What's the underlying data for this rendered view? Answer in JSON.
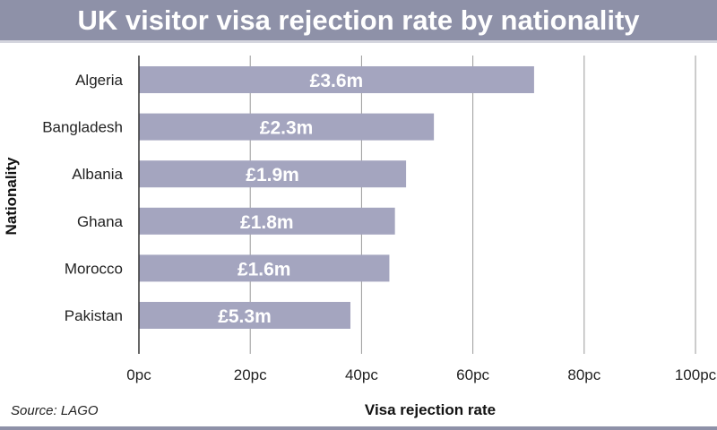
{
  "title": "UK visitor visa rejection rate by nationality",
  "source": "Source: LAGO",
  "colors": {
    "bar": "#a4a5bf",
    "header": "#8e91a8",
    "grid": "#9a9a9a"
  },
  "chart_data": {
    "type": "bar",
    "orientation": "horizontal",
    "title": "UK visitor visa rejection rate by nationality",
    "xlabel": "Visa rejection rate",
    "ylabel": "Nationality",
    "xlim": [
      0,
      100
    ],
    "xticks": [
      0,
      20,
      40,
      60,
      80,
      100
    ],
    "xtick_labels": [
      "0pc",
      "20pc",
      "40pc",
      "60pc",
      "80pc",
      "100pc"
    ],
    "grid": true,
    "categories": [
      "Algeria",
      "Bangladesh",
      "Albania",
      "Ghana",
      "Morocco",
      "Pakistan"
    ],
    "values": [
      71,
      53,
      48,
      46,
      45,
      38
    ],
    "bar_labels": [
      "£3.6m",
      "£2.3m",
      "£1.9m",
      "£1.8m",
      "£1.6m",
      "£5.3m"
    ]
  }
}
